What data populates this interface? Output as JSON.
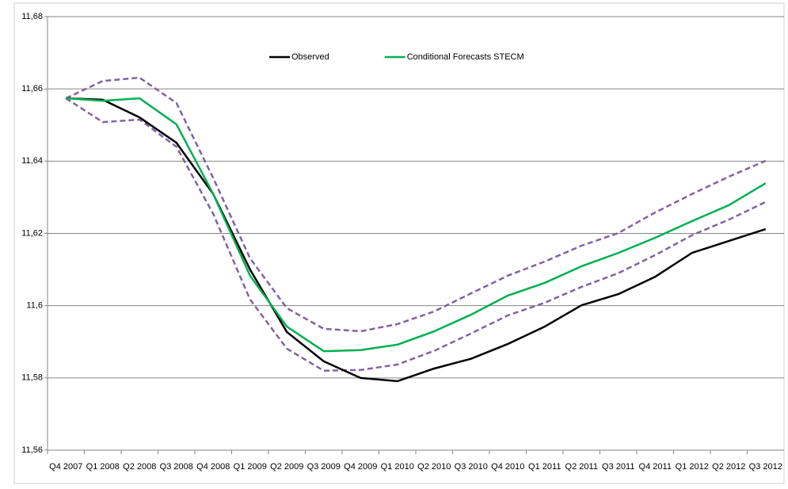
{
  "chart_data": {
    "type": "line",
    "categories": [
      "Q4 2007",
      "Q1 2008",
      "Q2 2008",
      "Q3 2008",
      "Q4 2008",
      "Q1 2009",
      "Q2 2009",
      "Q3 2009",
      "Q4 2009",
      "Q1 2010",
      "Q2 2010",
      "Q3 2010",
      "Q4 2010",
      "Q1 2011",
      "Q2 2011",
      "Q3 2011",
      "Q4 2011",
      "Q1 2012",
      "Q2 2012",
      "Q3 2012"
    ],
    "ylim": [
      11.56,
      11.68
    ],
    "yticks": [
      {
        "value": 11.56,
        "label": "11,56"
      },
      {
        "value": 11.58,
        "label": "11,58"
      },
      {
        "value": 11.6,
        "label": "11,6"
      },
      {
        "value": 11.62,
        "label": "11,62"
      },
      {
        "value": 11.64,
        "label": "11,64"
      },
      {
        "value": 11.66,
        "label": "11,66"
      },
      {
        "value": 11.68,
        "label": "11,68"
      }
    ],
    "grid": true,
    "legend": "top",
    "series": [
      {
        "color": "#8064a2",
        "dash": true,
        "values": [
          11.6574,
          11.6622,
          11.6631,
          11.6561,
          11.6353,
          11.6131,
          11.5993,
          11.5936,
          11.5929,
          11.5949,
          11.5984,
          11.6034,
          11.6083,
          11.6122,
          11.6166,
          11.6201,
          11.6258,
          11.6309,
          11.6357,
          11.6401
        ]
      },
      {
        "color": "#8064a2",
        "dash": true,
        "values": [
          11.6574,
          11.6508,
          11.6515,
          11.644,
          11.6254,
          11.6017,
          11.5881,
          11.582,
          11.5822,
          11.5837,
          11.5875,
          11.5923,
          11.5973,
          11.6008,
          11.6052,
          11.609,
          11.614,
          11.6195,
          11.6238,
          11.6287
        ]
      },
      {
        "name": "Observed",
        "color": "#000000",
        "dash": false,
        "values": [
          11.6574,
          11.657,
          11.6521,
          11.6451,
          11.6309,
          11.61,
          11.5927,
          11.5846,
          11.58,
          11.5791,
          11.5826,
          11.5853,
          11.5894,
          11.5942,
          11.6001,
          11.6032,
          11.608,
          11.6146,
          11.6179,
          11.6212
        ]
      },
      {
        "name": "Conditional Forecasts STECM",
        "color": "#00b050",
        "dash": false,
        "values": [
          11.6574,
          11.6567,
          11.6574,
          11.6502,
          11.6309,
          11.6083,
          11.5942,
          11.5874,
          11.5877,
          11.5892,
          11.5929,
          11.5975,
          11.6028,
          11.6063,
          11.6109,
          11.6146,
          11.6188,
          11.6234,
          11.6278,
          11.6339
        ]
      }
    ]
  }
}
